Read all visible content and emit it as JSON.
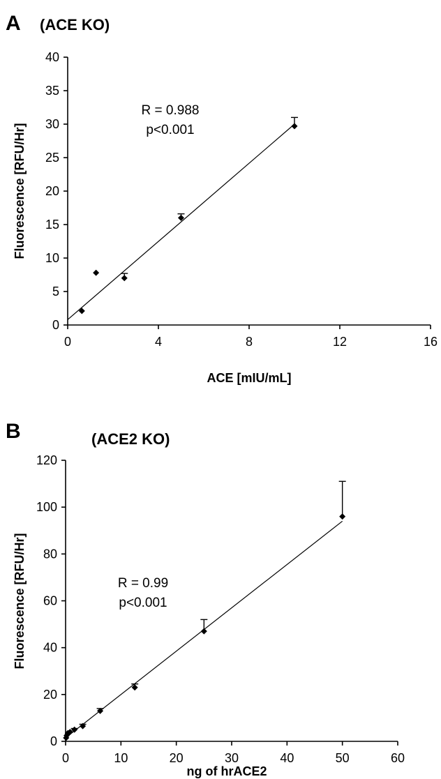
{
  "chart_data": [
    {
      "type": "scatter",
      "panel_label": "A",
      "title": "(ACE KO)",
      "xlabel": "ACE [mIU/mL]",
      "ylabel": "Fluorescence [RFU/Hr]",
      "xlim": [
        0,
        16
      ],
      "ylim": [
        0,
        40
      ],
      "xticks": [
        0,
        4,
        8,
        12,
        16
      ],
      "yticks": [
        0,
        5,
        10,
        15,
        20,
        25,
        30,
        35,
        40
      ],
      "annotation": [
        "R = 0.988",
        "p<0.001"
      ],
      "points": [
        {
          "x": 0.625,
          "y": 2.1,
          "err": 0
        },
        {
          "x": 1.25,
          "y": 7.8,
          "err": 0
        },
        {
          "x": 2.5,
          "y": 7.0,
          "err": 0.7
        },
        {
          "x": 5.0,
          "y": 16.0,
          "err": 0.6
        },
        {
          "x": 10.0,
          "y": 29.7,
          "err": 1.3
        }
      ],
      "fit_line": {
        "x": [
          0,
          10
        ],
        "y": [
          0.8,
          30.0
        ]
      },
      "grid": false,
      "marker": "diamond"
    },
    {
      "type": "scatter",
      "panel_label": "B",
      "title": "(ACE2 KO)",
      "xlabel": "ng of hrACE2",
      "ylabel": "Fluorescence [RFU/Hr]",
      "xlim": [
        0,
        60
      ],
      "ylim": [
        0,
        120
      ],
      "xticks": [
        0,
        10,
        20,
        30,
        40,
        50,
        60
      ],
      "yticks": [
        0,
        20,
        40,
        60,
        80,
        100,
        120
      ],
      "annotation": [
        "R = 0.99",
        "p<0.001"
      ],
      "points": [
        {
          "x": 0.1,
          "y": 1.5,
          "err": 0
        },
        {
          "x": 0.2,
          "y": 2.5,
          "err": 0
        },
        {
          "x": 0.4,
          "y": 3.5,
          "err": 0
        },
        {
          "x": 0.8,
          "y": 4.0,
          "err": 0
        },
        {
          "x": 1.6,
          "y": 5.0,
          "err": 0.5
        },
        {
          "x": 3.1,
          "y": 6.5,
          "err": 0.8
        },
        {
          "x": 6.25,
          "y": 13.0,
          "err": 1.0
        },
        {
          "x": 12.5,
          "y": 23.0,
          "err": 1.5
        },
        {
          "x": 25.0,
          "y": 47.0,
          "err": 5.0
        },
        {
          "x": 50.0,
          "y": 96.0,
          "err": 15.0
        }
      ],
      "fit_line": {
        "x": [
          0,
          50
        ],
        "y": [
          1.5,
          94.0
        ]
      },
      "grid": false,
      "marker": "diamond"
    }
  ]
}
